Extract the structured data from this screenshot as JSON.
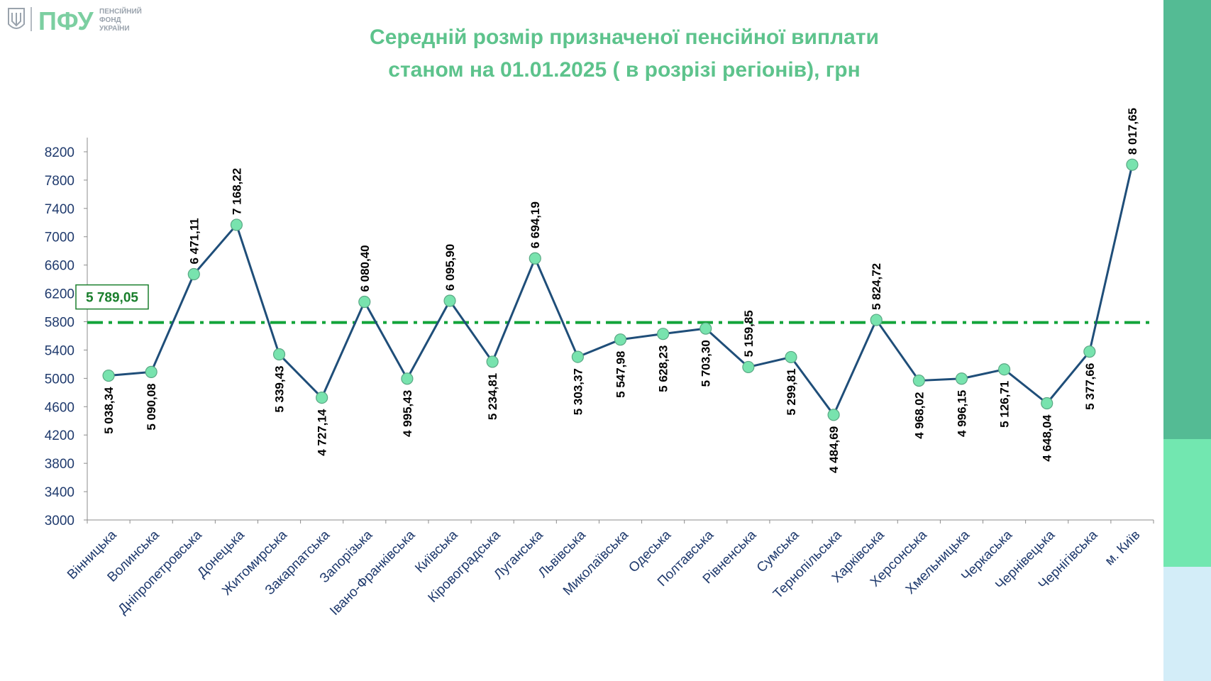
{
  "logo": {
    "mark": "ПФУ",
    "line1": "ПЕНСІЙНИЙ",
    "line2": "ФОНД",
    "line3": "УКРАЇНИ",
    "emblem": "trident-emblem-icon"
  },
  "title": {
    "line1": "Середній розмір призначеної пенсійної виплати",
    "line2": "станом на 01.01.2025 ( в розрізі регіонів), грн"
  },
  "colors": {
    "line": "#1f4e79",
    "marker": "#78e3ae",
    "average": "#12a43a",
    "title": "#5dc38c",
    "axis_text": "#1f3a6d"
  },
  "chart_data": {
    "type": "line",
    "title": "Середній розмір призначеної пенсійної виплати станом на 01.01.2025 ( в розрізі регіонів), грн",
    "categories": [
      "Вінницька",
      "Волинська",
      "Дніпропетровська",
      "Донецька",
      "Житомирська",
      "Закарпатська",
      "Запорізька",
      "Івано-Франківська",
      "Київська",
      "Кіровоградська",
      "Луганська",
      "Львівська",
      "Миколаївська",
      "Одеська",
      "Полтавська",
      "Рівненська",
      "Сумська",
      "Тернопільська",
      "Харківська",
      "Херсонська",
      "Хмельницька",
      "Черкаська",
      "Чернівецька",
      "Чернігівська",
      "м. Київ"
    ],
    "values": [
      5038.34,
      5090.08,
      6471.11,
      7168.22,
      5339.43,
      4727.14,
      6080.4,
      4995.43,
      6095.9,
      5234.81,
      6694.19,
      5303.37,
      5547.98,
      5628.23,
      5703.3,
      5159.85,
      5299.81,
      4484.69,
      5824.72,
      4968.02,
      4996.15,
      5126.71,
      4648.04,
      5377.66,
      8017.65
    ],
    "data_labels": [
      "5 038,34",
      "5 090,08",
      "6 471,11",
      "7 168,22",
      "5 339,43",
      "4 727,14",
      "6 080,40",
      "4 995,43",
      "6 095,90",
      "5 234,81",
      "6 694,19",
      "5 303,37",
      "5 547,98",
      "5 628,23",
      "5 703,30",
      "5 159,85",
      "5 299,81",
      "4 484,69",
      "5 824,72",
      "4 968,02",
      "4 996,15",
      "5 126,71",
      "4 648,04",
      "5 377,66",
      "8 017,65"
    ],
    "label_position": [
      "below",
      "below",
      "above",
      "above",
      "below",
      "below",
      "above",
      "below",
      "above",
      "below",
      "above",
      "below",
      "below",
      "below",
      "below",
      "above",
      "below",
      "below",
      "above",
      "below",
      "below",
      "below",
      "below",
      "below",
      "above"
    ],
    "average": {
      "value": 5789.05,
      "label": "5 789,05",
      "style": "dash-dot"
    },
    "ylim": [
      3000,
      8400
    ],
    "yticks": [
      3000,
      3400,
      3800,
      4200,
      4600,
      5000,
      5400,
      5800,
      6200,
      6600,
      7000,
      7400,
      7800,
      8200
    ],
    "xlabel": "",
    "ylabel": "",
    "grid": false,
    "legend": "none"
  }
}
